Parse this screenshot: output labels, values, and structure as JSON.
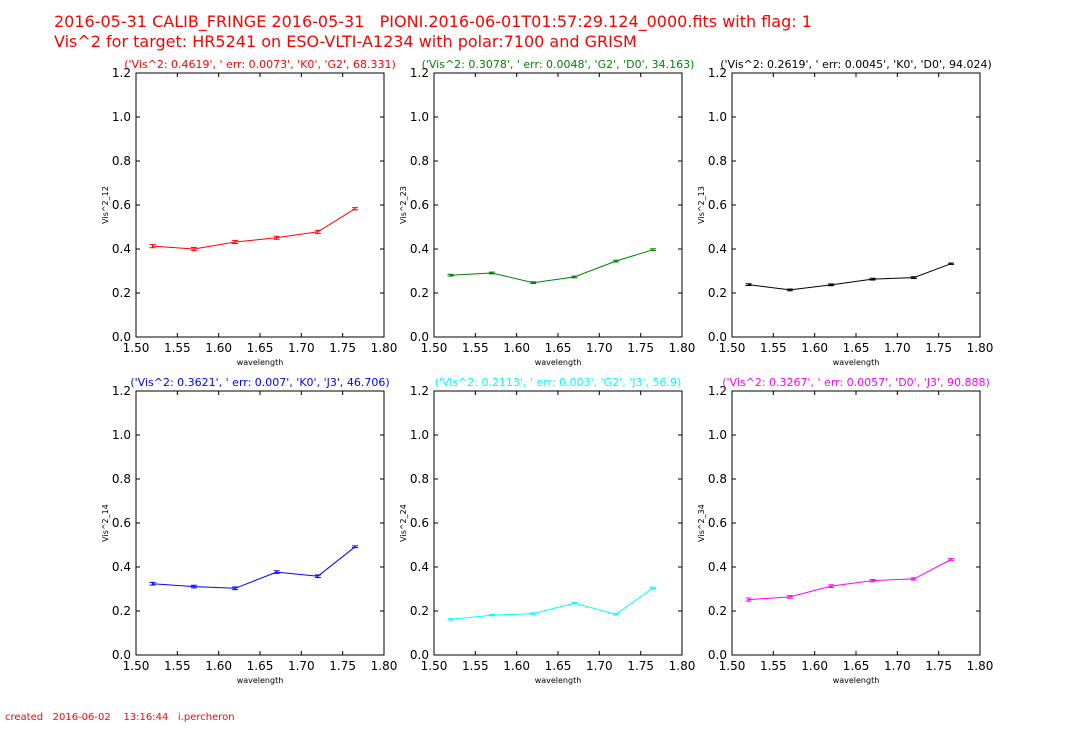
{
  "figure": {
    "title_line1": "2016-05-31 CALIB_FRINGE 2016-05-31   PIONI.2016-06-01T01:57:29.124_0000.fits with flag: 1",
    "title_line2": "Vis^2 for target: HR5241 on ESO-VLTI-A1234 with polar:7100 and GRISM",
    "footer": "created   2016-06-02    13:16:44   i.percheron",
    "title_color": "#ff0000"
  },
  "chart_data": [
    {
      "type": "line",
      "title": "('Vis^2: 0.4619', ' err: 0.0073', 'K0', 'G2', 68.331)",
      "color": "#ff0000",
      "xlabel": "wavelength",
      "ylabel": "Vis^2_12",
      "xlim": [
        1.5,
        1.8
      ],
      "ylim": [
        0.0,
        1.2
      ],
      "xticks": [
        "1.50",
        "1.55",
        "1.60",
        "1.65",
        "1.70",
        "1.75",
        "1.80"
      ],
      "yticks": [
        "0.0",
        "0.2",
        "0.4",
        "0.6",
        "0.8",
        "1.0",
        "1.2"
      ],
      "x": [
        1.52,
        1.57,
        1.62,
        1.67,
        1.72,
        1.765
      ],
      "y": [
        0.413,
        0.4,
        0.432,
        0.451,
        0.478,
        0.583
      ],
      "err": [
        0.007,
        0.007,
        0.007,
        0.007,
        0.007,
        0.005
      ]
    },
    {
      "type": "line",
      "title": "('Vis^2: 0.3078', ' err: 0.0048', 'G2', 'D0', 34.163)",
      "color": "#008000",
      "xlabel": "wavelength",
      "ylabel": "Vis^2_23",
      "xlim": [
        1.5,
        1.8
      ],
      "ylim": [
        0.0,
        1.2
      ],
      "xticks": [
        "1.50",
        "1.55",
        "1.60",
        "1.65",
        "1.70",
        "1.75",
        "1.80"
      ],
      "yticks": [
        "0.0",
        "0.2",
        "0.4",
        "0.6",
        "0.8",
        "1.0",
        "1.2"
      ],
      "x": [
        1.52,
        1.57,
        1.62,
        1.67,
        1.72,
        1.765
      ],
      "y": [
        0.281,
        0.291,
        0.247,
        0.273,
        0.345,
        0.397
      ],
      "err": [
        0.004,
        0.004,
        0.004,
        0.004,
        0.004,
        0.004
      ]
    },
    {
      "type": "line",
      "title": "('Vis^2: 0.2619', ' err: 0.0045', 'K0', 'D0', 94.024)",
      "color": "#000000",
      "xlabel": "wavelength",
      "ylabel": "Vis^2_13",
      "xlim": [
        1.5,
        1.8
      ],
      "ylim": [
        0.0,
        1.2
      ],
      "xticks": [
        "1.50",
        "1.55",
        "1.60",
        "1.65",
        "1.70",
        "1.75",
        "1.80"
      ],
      "yticks": [
        "0.0",
        "0.2",
        "0.4",
        "0.6",
        "0.8",
        "1.0",
        "1.2"
      ],
      "x": [
        1.52,
        1.57,
        1.62,
        1.67,
        1.72,
        1.765
      ],
      "y": [
        0.238,
        0.214,
        0.237,
        0.263,
        0.27,
        0.333
      ],
      "err": [
        0.004,
        0.004,
        0.004,
        0.004,
        0.004,
        0.003
      ]
    },
    {
      "type": "line",
      "title": "('Vis^2: 0.3621', ' err: 0.007', 'K0', 'J3', 46.706)",
      "color": "#0000ff",
      "xlabel": "wavelength",
      "ylabel": "Vis^2_14",
      "xlim": [
        1.5,
        1.8
      ],
      "ylim": [
        0.0,
        1.2
      ],
      "xticks": [
        "1.50",
        "1.55",
        "1.60",
        "1.65",
        "1.70",
        "1.75",
        "1.80"
      ],
      "yticks": [
        "0.0",
        "0.2",
        "0.4",
        "0.6",
        "0.8",
        "1.0",
        "1.2"
      ],
      "x": [
        1.52,
        1.57,
        1.62,
        1.67,
        1.72,
        1.765
      ],
      "y": [
        0.324,
        0.311,
        0.303,
        0.377,
        0.358,
        0.492
      ],
      "err": [
        0.006,
        0.006,
        0.006,
        0.006,
        0.006,
        0.004
      ]
    },
    {
      "type": "line",
      "title": "('Vis^2: 0.2113', ' err: 0.003', 'G2', 'J3', 56.9)",
      "color": "#00ffff",
      "xlabel": "wavelength",
      "ylabel": "Vis^2_24",
      "xlim": [
        1.5,
        1.8
      ],
      "ylim": [
        0.0,
        1.2
      ],
      "xticks": [
        "1.50",
        "1.55",
        "1.60",
        "1.65",
        "1.70",
        "1.75",
        "1.80"
      ],
      "yticks": [
        "0.0",
        "0.2",
        "0.4",
        "0.6",
        "0.8",
        "1.0",
        "1.2"
      ],
      "x": [
        1.52,
        1.57,
        1.62,
        1.67,
        1.72,
        1.765
      ],
      "y": [
        0.162,
        0.181,
        0.188,
        0.236,
        0.185,
        0.305
      ],
      "err": [
        0.003,
        0.003,
        0.003,
        0.003,
        0.003,
        0.003
      ]
    },
    {
      "type": "line",
      "title": "('Vis^2: 0.3267', ' err: 0.0057', 'D0', 'J3', 90.888)",
      "color": "#ff00ff",
      "xlabel": "wavelength",
      "ylabel": "Vis^2_34",
      "xlim": [
        1.5,
        1.8
      ],
      "ylim": [
        0.0,
        1.2
      ],
      "xticks": [
        "1.50",
        "1.55",
        "1.60",
        "1.65",
        "1.70",
        "1.75",
        "1.80"
      ],
      "yticks": [
        "0.0",
        "0.2",
        "0.4",
        "0.6",
        "0.8",
        "1.0",
        "1.2"
      ],
      "x": [
        1.52,
        1.57,
        1.62,
        1.67,
        1.72,
        1.765
      ],
      "y": [
        0.252,
        0.264,
        0.313,
        0.338,
        0.346,
        0.434
      ],
      "err": [
        0.007,
        0.006,
        0.006,
        0.005,
        0.005,
        0.004
      ]
    }
  ]
}
